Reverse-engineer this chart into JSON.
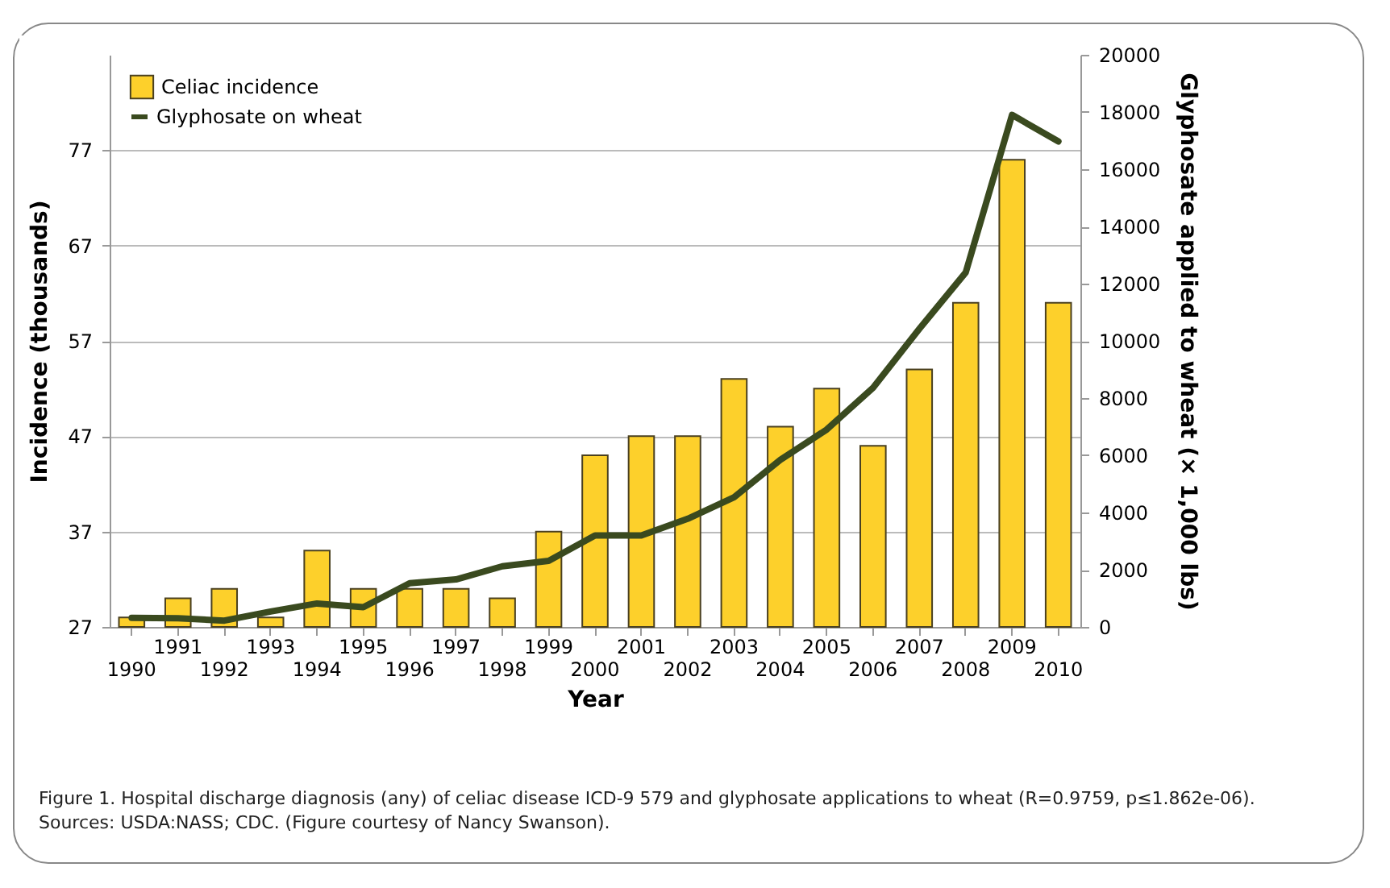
{
  "chart_data": {
    "type": "bar",
    "xlabel": "Year",
    "ylabel": "Incidence (thousands)",
    "y2label": "Glyphosate applied to wheat (× 1,000 lbs)",
    "categories": [
      "1990",
      "1991",
      "1992",
      "1993",
      "1994",
      "1995",
      "1996",
      "1997",
      "1998",
      "1999",
      "2000",
      "2001",
      "2002",
      "2003",
      "2004",
      "2005",
      "2006",
      "2007",
      "2008",
      "2009",
      "2010"
    ],
    "series": [
      {
        "name": "Celiac incidence",
        "color": "#fdd02b",
        "values": [
          28,
          30,
          31,
          28,
          35,
          31,
          31,
          31,
          30,
          37,
          45,
          47,
          47,
          53,
          48,
          52,
          46,
          54,
          61,
          76,
          61
        ]
      },
      {
        "name": "Glyphosate on wheat",
        "type": "line",
        "axis": "y2",
        "color": "#3a4a1f",
        "values": [
          320,
          300,
          220,
          540,
          820,
          690,
          1530,
          1660,
          2120,
          2310,
          3200,
          3200,
          3780,
          4530,
          5840,
          6900,
          8360,
          10420,
          12390,
          17900,
          16970
        ]
      }
    ],
    "ylim": [
      27,
      87
    ],
    "yticks": [
      27,
      37,
      47,
      57,
      67,
      77
    ],
    "y2lim": [
      0,
      20000
    ],
    "y2ticks": [
      0,
      2000,
      4000,
      6000,
      8000,
      10000,
      12000,
      14000,
      16000,
      18000,
      20000
    ],
    "grid": "y",
    "legend": "top left",
    "annotations": [
      "Figure 1. Hospital discharge diagnosis (any) of celiac disease ICD-9 579 and glyphosate applications to wheat (R=0.9759, p≤1.862e-06). Sources: USDA:NASS; CDC. (Figure courtesy of Nancy Swanson)."
    ]
  }
}
